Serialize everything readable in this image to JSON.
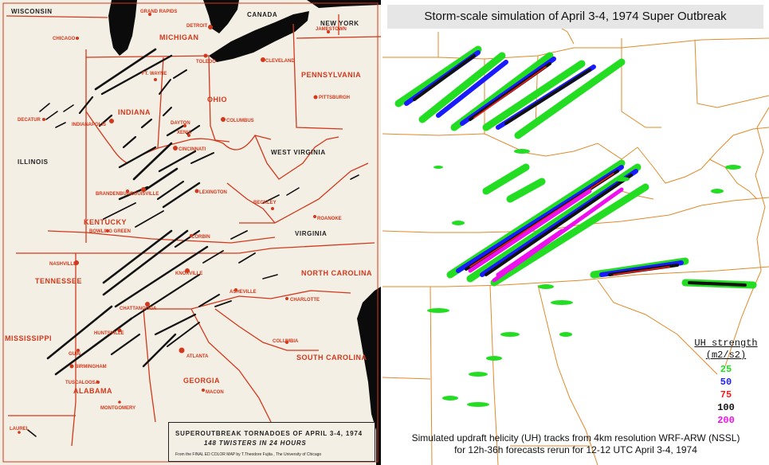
{
  "left_map": {
    "states": [
      "WISCONSIN",
      "MICHIGAN",
      "CANADA",
      "NEW YORK",
      "PENNSYLVANIA",
      "OHIO",
      "INDIANA",
      "ILLINOIS",
      "WEST VIRGINIA",
      "KENTUCKY",
      "VIRGINIA",
      "TENNESSEE",
      "NORTH CAROLINA",
      "MISSISSIPPI",
      "ALABAMA",
      "GEORGIA",
      "SOUTH CAROLINA"
    ],
    "cities": [
      "GRAND RAPIDS",
      "DETROIT",
      "CHICAGO",
      "JAMESTOWN",
      "TOLEDO",
      "CLEVELAND",
      "FT. WAYNE",
      "PITTSBURGH",
      "DECATUR",
      "INDIANAPOLIS",
      "DAYTON",
      "XENIA",
      "COLUMBUS",
      "CINCINNATI",
      "BRANDENBURG",
      "LOUISVILLE",
      "LEXINGTON",
      "BECKLEY",
      "ROANOKE",
      "BOWLING GREEN",
      "CORBIN",
      "NASHVILLE",
      "KNOXVILLE",
      "ASHEVILLE",
      "CHARLOTTE",
      "CHATTANOOGA",
      "HUNTSVILLE",
      "GUIN",
      "BIRMINGHAM",
      "TUSCALOOSA",
      "ATLANTA",
      "COLUMBIA",
      "MACON",
      "MONTGOMERY",
      "LAUREL"
    ],
    "source_title": "SUPEROUTBREAK TORNADOES OF APRIL 3-4, 1974",
    "source_subtitle": "148 TWISTERS IN 24 HOURS",
    "source_credit": "From the FINAL ED COLOR MAP by T.Theodore Fujita , The University of Chicago"
  },
  "right_map": {
    "title": "Storm-scale simulation of April 3-4, 1974 Super Outbreak",
    "caption_line1": "Simulated updraft helicity (UH) tracks from 4km resolution WRF-ARW (NSSL)",
    "caption_line2": "for 12h-36h forecasts rerun for 12-12 UTC April 3-4, 1974",
    "legend": {
      "title": "UH strength",
      "unit": "(m2/s2)",
      "items": [
        {
          "value": "25",
          "color": "#22dd22"
        },
        {
          "value": "50",
          "color": "#1a1aff"
        },
        {
          "value": "75",
          "color": "#ff1a1a"
        },
        {
          "value": "100",
          "color": "#111111"
        },
        {
          "value": "200",
          "color": "#ee11ee"
        }
      ]
    }
  },
  "colors": {
    "map_paper": "#f4efe4",
    "border_red": "#d2381c",
    "lake": "#0b0b0b",
    "sim_border": "#e08a2a"
  }
}
